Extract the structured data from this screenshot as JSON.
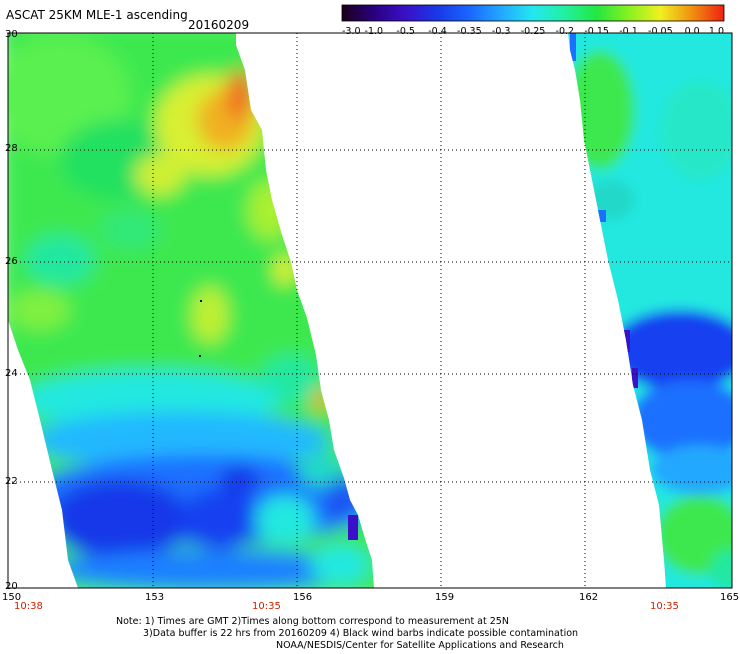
{
  "title": "ASCAT 25KM MLE-1 ascending",
  "date": "20160209",
  "colorbar": {
    "labels": [
      "-3.0",
      "-1.0",
      "-0.5",
      "-0.4",
      "-0.35",
      "-0.3",
      "-0.25",
      "-0.2",
      "-0.15",
      "-0.1",
      "-0.05",
      "0.0",
      "1.0"
    ],
    "colors": [
      "#1a0018",
      "#2a0080",
      "#3a10c8",
      "#1838e8",
      "#1a66ff",
      "#22a8ff",
      "#22e8f0",
      "#22f0a0",
      "#22e840",
      "#88f020",
      "#f0f020",
      "#f09010",
      "#f02010"
    ]
  },
  "map": {
    "lat_labels": [
      "30",
      "28",
      "26",
      "24",
      "22",
      "20"
    ],
    "lon_labels": [
      "150",
      "153",
      "156",
      "159",
      "162",
      "165"
    ],
    "time_labels": [
      "10:38",
      "10:35",
      "10:35"
    ],
    "time_color": "#cc2200"
  },
  "notes": {
    "line1": "Note: 1) Times are GMT 2)Times along bottom correspond to measurement at 25N",
    "line2": "3)Data buffer is 22 hrs from 20160209 4) Black wind barbs indicate possible contamination",
    "line3": "NOAA/NESDIS/Center for Satellite Applications and Research"
  }
}
